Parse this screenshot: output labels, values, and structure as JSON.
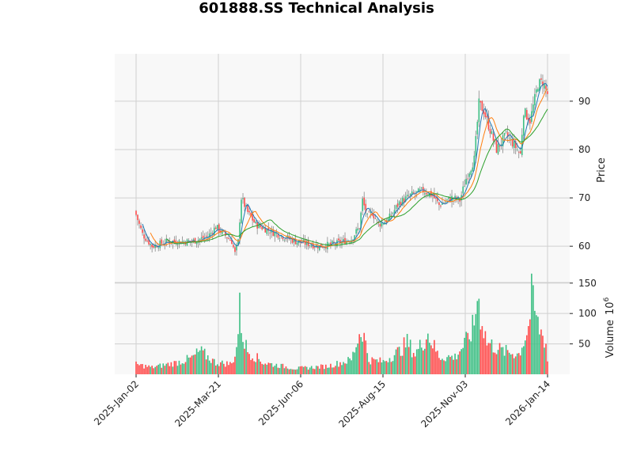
{
  "title": "601888.SS Technical Analysis",
  "colors": {
    "up": "#3dbf84",
    "down": "#ff4c4c",
    "wick": "#888888",
    "ma_short": "#1f77b4",
    "ma_mid": "#ff7f0e",
    "ma_long": "#2ca02c",
    "panel_bg": "#f8f8f8",
    "grid": "#d0d0d0"
  },
  "chart_data": [
    {
      "type": "candlestick",
      "title": "601888.SS Technical Analysis",
      "ylabel": "Price",
      "ylim": [
        52.5,
        99.8
      ],
      "yticks": [
        60,
        70,
        80,
        90
      ],
      "xticks": [
        "2025-Jan-02",
        "2025-Mar-21",
        "2025-Jun-06",
        "2025-Aug-15",
        "2025-Nov-03",
        "2026-Jan-14"
      ],
      "overlays": [
        "MA short (blue)",
        "MA mid (orange)",
        "MA long (green)"
      ],
      "grid": true,
      "close_keyframes": [
        {
          "i": 0,
          "v": 66.5
        },
        {
          "i": 4,
          "v": 62.5
        },
        {
          "i": 10,
          "v": 60.0
        },
        {
          "i": 20,
          "v": 61.0
        },
        {
          "i": 35,
          "v": 61.0
        },
        {
          "i": 45,
          "v": 62.0
        },
        {
          "i": 50,
          "v": 64.0
        },
        {
          "i": 55,
          "v": 62.5
        },
        {
          "i": 60,
          "v": 61.0
        },
        {
          "i": 62,
          "v": 58.5
        },
        {
          "i": 64,
          "v": 61.0
        },
        {
          "i": 66,
          "v": 70.0
        },
        {
          "i": 70,
          "v": 67.0
        },
        {
          "i": 75,
          "v": 64.5
        },
        {
          "i": 85,
          "v": 63.0
        },
        {
          "i": 100,
          "v": 61.0
        },
        {
          "i": 115,
          "v": 60.0
        },
        {
          "i": 125,
          "v": 60.5
        },
        {
          "i": 135,
          "v": 61.5
        },
        {
          "i": 140,
          "v": 64.0
        },
        {
          "i": 142,
          "v": 69.5
        },
        {
          "i": 145,
          "v": 66.0
        },
        {
          "i": 148,
          "v": 67.0
        },
        {
          "i": 152,
          "v": 64.5
        },
        {
          "i": 158,
          "v": 65.5
        },
        {
          "i": 165,
          "v": 69.0
        },
        {
          "i": 172,
          "v": 70.5
        },
        {
          "i": 180,
          "v": 71.5
        },
        {
          "i": 186,
          "v": 70.5
        },
        {
          "i": 190,
          "v": 68.5
        },
        {
          "i": 198,
          "v": 70.0
        },
        {
          "i": 203,
          "v": 69.5
        },
        {
          "i": 207,
          "v": 74.0
        },
        {
          "i": 212,
          "v": 78.0
        },
        {
          "i": 215,
          "v": 89.5
        },
        {
          "i": 218,
          "v": 88.0
        },
        {
          "i": 222,
          "v": 84.0
        },
        {
          "i": 226,
          "v": 80.0
        },
        {
          "i": 232,
          "v": 83.0
        },
        {
          "i": 238,
          "v": 80.5
        },
        {
          "i": 241,
          "v": 79.0
        },
        {
          "i": 243,
          "v": 88.0
        },
        {
          "i": 247,
          "v": 86.0
        },
        {
          "i": 252,
          "v": 93.5
        },
        {
          "i": 255,
          "v": 94.0
        },
        {
          "i": 258,
          "v": 91.5
        }
      ],
      "n_candles": 259
    },
    {
      "type": "bar",
      "ylabel": "Volume",
      "yscale_label": "10^6",
      "ylim": [
        0,
        151
      ],
      "yticks": [
        50,
        100,
        150
      ],
      "volume_keyframes": [
        {
          "i": 0,
          "v": 17
        },
        {
          "i": 10,
          "v": 12
        },
        {
          "i": 25,
          "v": 20
        },
        {
          "i": 35,
          "v": 28
        },
        {
          "i": 40,
          "v": 40
        },
        {
          "i": 50,
          "v": 20
        },
        {
          "i": 60,
          "v": 18
        },
        {
          "i": 63,
          "v": 45
        },
        {
          "i": 65,
          "v": 112
        },
        {
          "i": 67,
          "v": 65
        },
        {
          "i": 70,
          "v": 40
        },
        {
          "i": 80,
          "v": 20
        },
        {
          "i": 100,
          "v": 10
        },
        {
          "i": 120,
          "v": 14
        },
        {
          "i": 135,
          "v": 25
        },
        {
          "i": 140,
          "v": 70
        },
        {
          "i": 142,
          "v": 78
        },
        {
          "i": 146,
          "v": 25
        },
        {
          "i": 155,
          "v": 22
        },
        {
          "i": 165,
          "v": 40
        },
        {
          "i": 170,
          "v": 55
        },
        {
          "i": 175,
          "v": 35
        },
        {
          "i": 183,
          "v": 70
        },
        {
          "i": 190,
          "v": 30
        },
        {
          "i": 200,
          "v": 30
        },
        {
          "i": 208,
          "v": 60
        },
        {
          "i": 212,
          "v": 85
        },
        {
          "i": 214,
          "v": 139
        },
        {
          "i": 216,
          "v": 105
        },
        {
          "i": 220,
          "v": 55
        },
        {
          "i": 230,
          "v": 40
        },
        {
          "i": 240,
          "v": 35
        },
        {
          "i": 246,
          "v": 80
        },
        {
          "i": 248,
          "v": 133
        },
        {
          "i": 252,
          "v": 85
        },
        {
          "i": 257,
          "v": 55
        },
        {
          "i": 258,
          "v": 22
        }
      ]
    }
  ],
  "axes": {
    "price_label": "Price",
    "volume_label": "Volume",
    "volume_exp": "10",
    "volume_exp_sup": "6",
    "price_ticks": [
      "60",
      "70",
      "80",
      "90"
    ],
    "volume_ticks": [
      "50",
      "100",
      "150"
    ],
    "x_ticks": [
      "2025-Jan-02",
      "2025-Mar-21",
      "2025-Jun-06",
      "2025-Aug-15",
      "2025-Nov-03",
      "2026-Jan-14"
    ]
  }
}
